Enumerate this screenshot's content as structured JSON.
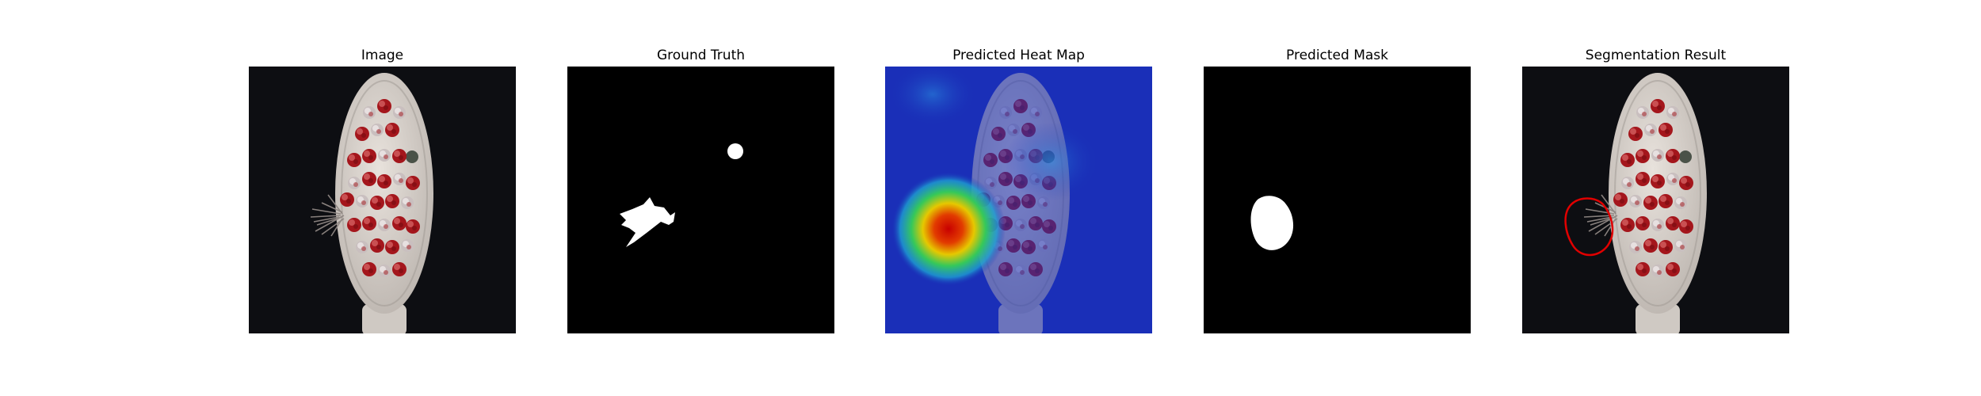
{
  "figure": {
    "panels": [
      {
        "id": "image",
        "title": "Image"
      },
      {
        "id": "ground-truth",
        "title": "Ground Truth"
      },
      {
        "id": "heatmap",
        "title": "Predicted Heat Map"
      },
      {
        "id": "mask",
        "title": "Predicted Mask"
      },
      {
        "id": "segmentation",
        "title": "Segmentation Result"
      }
    ],
    "colors": {
      "background": "#0d0e12",
      "brush_head": "#d8d2cc",
      "bristle_red": "#a4161c",
      "mask_white": "#ffffff",
      "heat_blue": "#1a2fb8",
      "heat_red": "#d21a0a",
      "contour_red": "#e00000"
    }
  }
}
